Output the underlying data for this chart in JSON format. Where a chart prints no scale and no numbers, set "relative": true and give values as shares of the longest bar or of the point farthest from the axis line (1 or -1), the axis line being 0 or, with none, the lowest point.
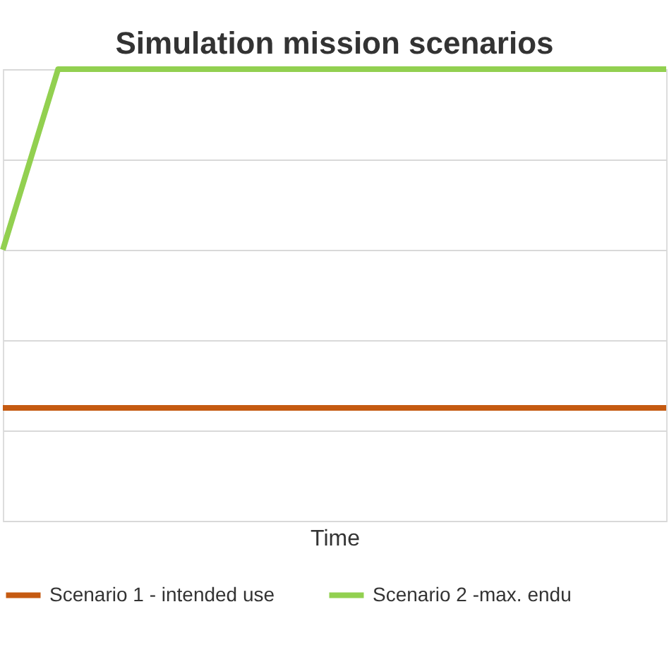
{
  "chart_data": {
    "type": "line",
    "title": "Simulation mission scenarios",
    "xlabel": "Time",
    "relative": true,
    "categories": [
      null,
      null,
      null,
      null,
      null,
      null,
      null,
      null,
      null,
      null,
      null,
      null,
      null
    ],
    "series": [
      {
        "name": "Scenario 1 - intended use",
        "color": "#c55a11",
        "values": [
          0.25,
          0.25,
          0.25,
          0.25,
          0.25,
          0.25,
          0.25,
          0.25,
          0.25,
          0.25,
          0.25,
          0.25,
          0.25
        ]
      },
      {
        "name": "Scenario 2 -max. endu",
        "color": "#92d050",
        "values": [
          0.6,
          1,
          1,
          1,
          1,
          1,
          1,
          1,
          1,
          1,
          1,
          1,
          1
        ]
      }
    ],
    "grid": "y",
    "legend": "bottom",
    "marker": "none",
    "line_style": "solid"
  }
}
